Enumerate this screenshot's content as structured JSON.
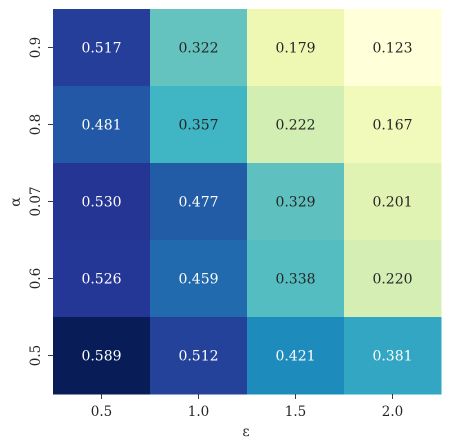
{
  "chart_data": {
    "type": "heatmap",
    "title": "",
    "xlabel": "ε",
    "ylabel": "α",
    "x_categories": [
      "0.5",
      "1.0",
      "1.5",
      "2.0"
    ],
    "y_categories": [
      "0.9",
      "0.8",
      "0.07",
      "0.6",
      "0.5"
    ],
    "values": [
      [
        0.517,
        0.322,
        0.179,
        0.123
      ],
      [
        0.481,
        0.357,
        0.222,
        0.167
      ],
      [
        0.53,
        0.477,
        0.329,
        0.201
      ],
      [
        0.526,
        0.459,
        0.338,
        0.22
      ],
      [
        0.589,
        0.512,
        0.421,
        0.381
      ]
    ],
    "cell_labels": [
      [
        "0.517",
        "0.322",
        "0.179",
        "0.123"
      ],
      [
        "0.481",
        "0.357",
        "0.222",
        "0.167"
      ],
      [
        "0.530",
        "0.477",
        "0.329",
        "0.201"
      ],
      [
        "0.526",
        "0.459",
        "0.338",
        "0.220"
      ],
      [
        "0.589",
        "0.512",
        "0.421",
        "0.381"
      ]
    ],
    "colormap": "YlGnBu",
    "value_range": [
      0.123,
      0.589
    ],
    "colorbar": false,
    "grid": false
  }
}
